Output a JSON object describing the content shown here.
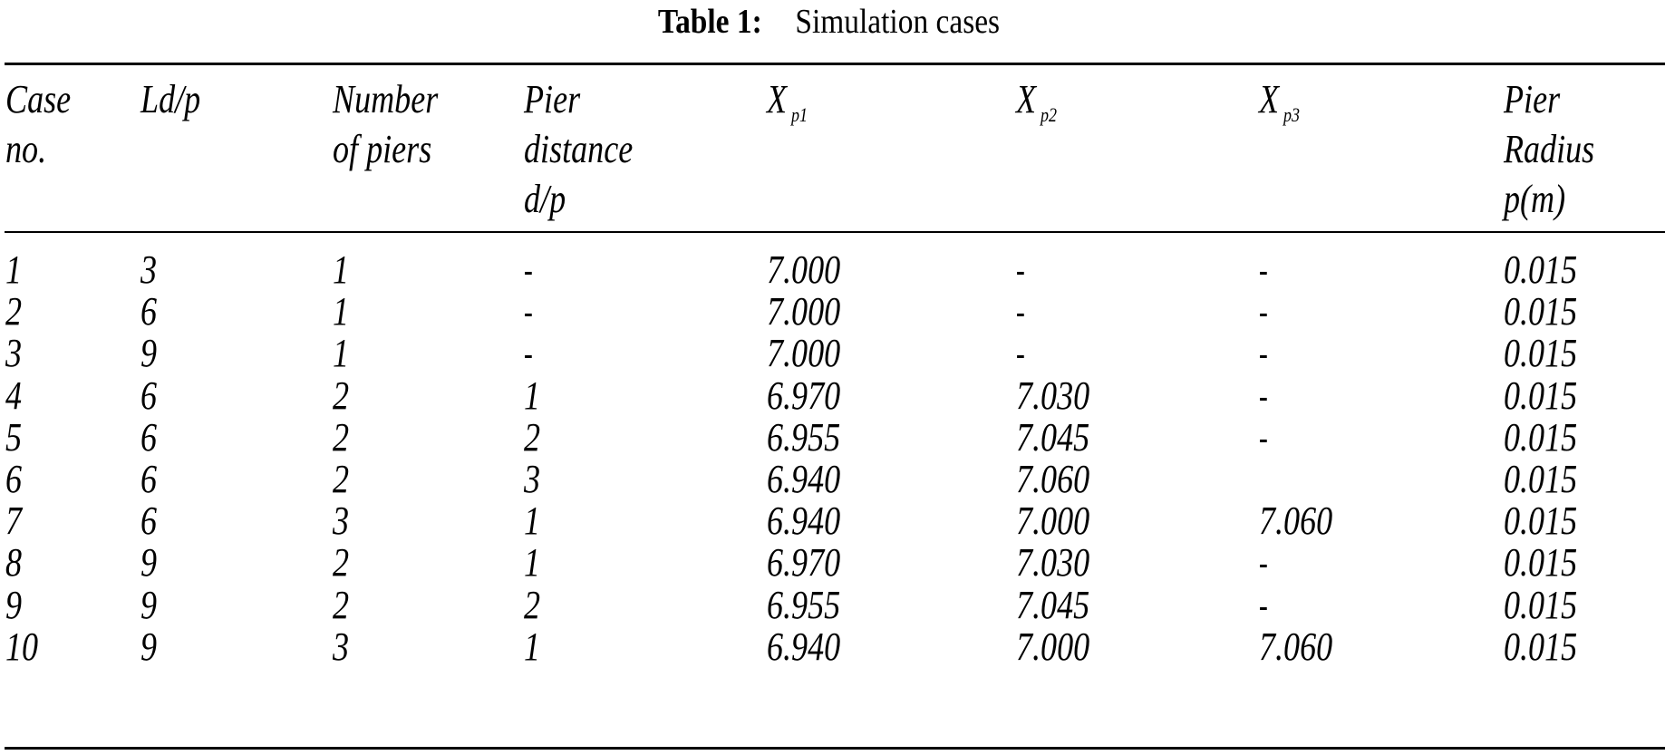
{
  "table": {
    "caption_label": "Table 1:",
    "caption_title": "Simulation cases",
    "columns": [
      {
        "id": "case_no",
        "label": "Case\nno."
      },
      {
        "id": "ld_p",
        "label": "Ld/p"
      },
      {
        "id": "number_of_piers",
        "label": "Number\nof piers"
      },
      {
        "id": "pier_distance",
        "label": "Pier\ndistance\nd/p"
      },
      {
        "id": "xp1",
        "label": "X",
        "sub": "p1"
      },
      {
        "id": "xp2",
        "label": "X",
        "sub": "p2"
      },
      {
        "id": "xp3",
        "label": "X",
        "sub": "p3"
      },
      {
        "id": "pier_radius",
        "label": "Pier\nRadius\np(m)"
      }
    ],
    "rows": [
      [
        "1",
        "3",
        "1",
        "-",
        "7.000",
        "-",
        "-",
        "0.015"
      ],
      [
        "2",
        "6",
        "1",
        "-",
        "7.000",
        "-",
        "-",
        "0.015"
      ],
      [
        "3",
        "9",
        "1",
        "-",
        "7.000",
        "-",
        "-",
        "0.015"
      ],
      [
        "4",
        "6",
        "2",
        "1",
        "6.970",
        "7.030",
        "-",
        "0.015"
      ],
      [
        "5",
        "6",
        "2",
        "2",
        "6.955",
        "7.045",
        "-",
        "0.015"
      ],
      [
        "6",
        "6",
        "2",
        "3",
        "6.940",
        "7.060",
        "",
        "0.015"
      ],
      [
        "7",
        "6",
        "3",
        "1",
        "6.940",
        "7.000",
        "7.060",
        "0.015"
      ],
      [
        "8",
        "9",
        "2",
        "1",
        "6.970",
        "7.030",
        "-",
        "0.015"
      ],
      [
        "9",
        "9",
        "2",
        "2",
        "6.955",
        "7.045",
        "-",
        "0.015"
      ],
      [
        "10",
        "9",
        "3",
        "1",
        "6.940",
        "7.000",
        "7.060",
        "0.015"
      ]
    ]
  }
}
